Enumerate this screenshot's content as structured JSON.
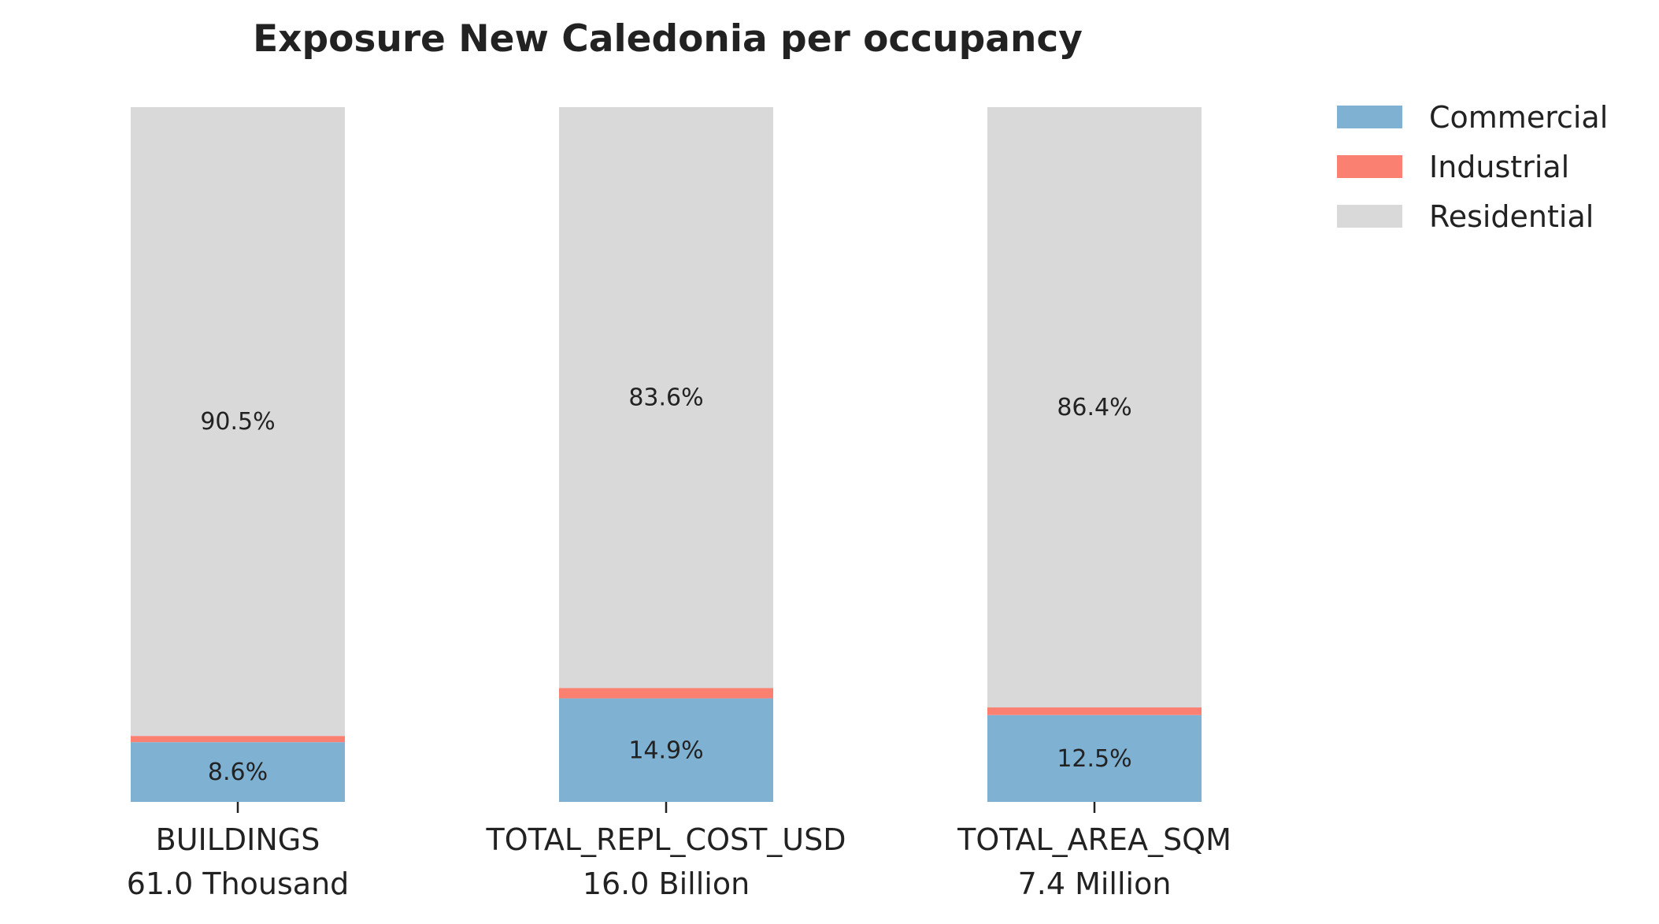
{
  "chart_data": {
    "type": "bar",
    "stacked": true,
    "normalized_percent": true,
    "title": "Exposure New Caledonia per occupancy",
    "xlabel": "",
    "ylabel": "",
    "ylim": [
      0,
      100
    ],
    "grid": false,
    "legend_position": "top-right, outside plot",
    "categories": [
      "BUILDINGS",
      "TOTAL_REPL_COST_USD",
      "TOTAL_AREA_SQM"
    ],
    "category_totals": [
      "61.0 Thousand",
      "16.0 Billion",
      "7.4 Million"
    ],
    "series": [
      {
        "name": "Commercial",
        "color": "#7fb1d3",
        "values": [
          8.6,
          14.9,
          12.5
        ],
        "labels": [
          "8.6%",
          "14.9%",
          "12.5%"
        ]
      },
      {
        "name": "Industrial",
        "color": "#fa8072",
        "values": [
          0.9,
          1.5,
          1.1
        ],
        "labels": [
          "",
          "",
          ""
        ]
      },
      {
        "name": "Residential",
        "color": "#d9d9d9",
        "values": [
          90.5,
          83.6,
          86.4
        ],
        "labels": [
          "90.5%",
          "83.6%",
          "86.4%"
        ]
      }
    ]
  }
}
